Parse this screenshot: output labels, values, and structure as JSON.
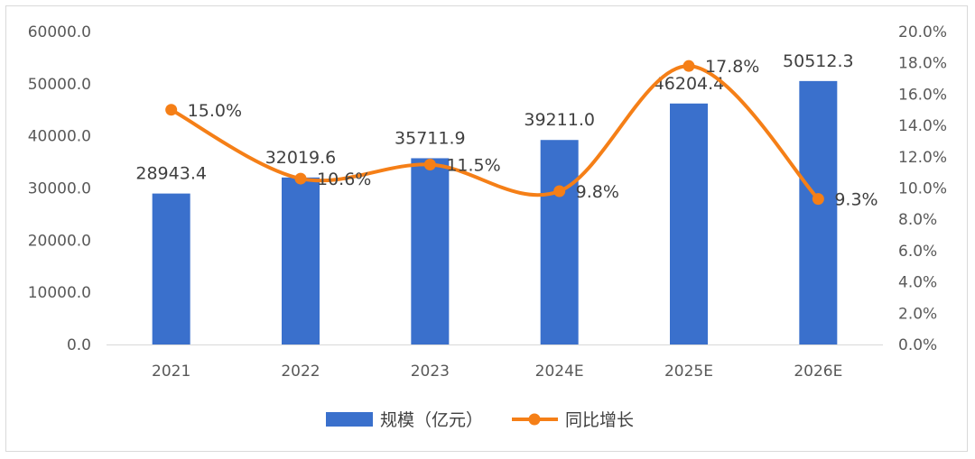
{
  "chart_data": {
    "type": "bar+line",
    "categories": [
      "2021",
      "2022",
      "2023",
      "2024E",
      "2025E",
      "2026E"
    ],
    "series": [
      {
        "name": "规模（亿元）",
        "type": "bar",
        "axis": "left",
        "values": [
          28943.4,
          32019.6,
          35711.9,
          39211.0,
          46204.4,
          50512.3
        ],
        "labels": [
          "28943.4",
          "32019.6",
          "35711.9",
          "39211.0",
          "46204.4",
          "50512.3"
        ],
        "color": "#3a70cc"
      },
      {
        "name": "同比增长",
        "type": "line",
        "axis": "right",
        "values": [
          15.0,
          10.6,
          11.5,
          9.8,
          17.8,
          9.3
        ],
        "labels": [
          "15.0%",
          "10.6%",
          "11.5%",
          "9.8%",
          "17.8%",
          "9.3%"
        ],
        "color": "#f57f17"
      }
    ],
    "y_left": {
      "range": [
        0,
        60000
      ],
      "ticks": [
        0,
        10000,
        20000,
        30000,
        40000,
        50000,
        60000
      ],
      "tick_labels": [
        "0.0",
        "10000.0",
        "20000.0",
        "30000.0",
        "40000.0",
        "50000.0",
        "60000.0"
      ]
    },
    "y_right": {
      "range": [
        0,
        20
      ],
      "ticks": [
        0,
        2,
        4,
        6,
        8,
        10,
        12,
        14,
        16,
        18,
        20
      ],
      "tick_labels": [
        "0.0%",
        "2.0%",
        "4.0%",
        "6.0%",
        "8.0%",
        "10.0%",
        "12.0%",
        "14.0%",
        "16.0%",
        "18.0%",
        "20.0%"
      ]
    },
    "grid": false,
    "legend": "bottom-center",
    "title": "",
    "xlabel": "",
    "ylabel": ""
  }
}
